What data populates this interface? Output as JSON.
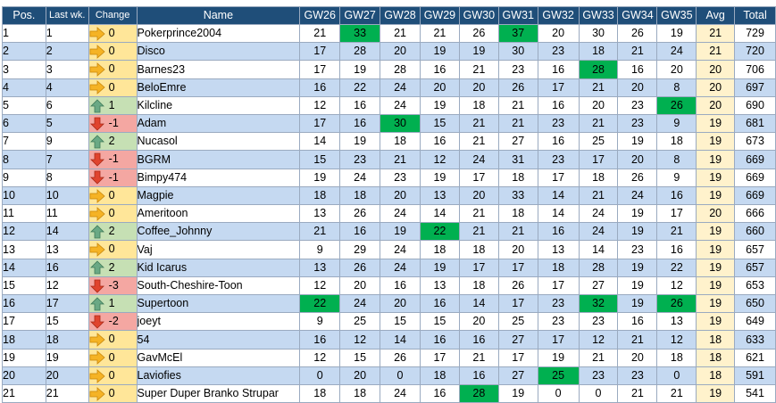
{
  "columns": [
    "Pos.",
    "Last wk.",
    "Change",
    "Name",
    "GW26",
    "GW27",
    "GW28",
    "GW29",
    "GW30",
    "GW31",
    "GW32",
    "GW33",
    "GW34",
    "GW35",
    "Avg",
    "Total"
  ],
  "colors": {
    "header": "#1f4e79",
    "row_alt": "#c5d9f1",
    "highlight": "#00b050",
    "avg": "#fff2cc",
    "same": "#ffe699",
    "up": "#c6e0b4",
    "down": "#f4a7a2"
  },
  "rows": [
    {
      "pos": "1",
      "last": "1",
      "dir": "same",
      "change": "0",
      "name": "Pokerprince2004",
      "gw": [
        "21",
        "33",
        "21",
        "21",
        "26",
        "37",
        "20",
        "30",
        "26",
        "19"
      ],
      "hl": [
        1,
        5
      ],
      "avg": "21",
      "total": "729"
    },
    {
      "pos": "2",
      "last": "2",
      "dir": "same",
      "change": "0",
      "name": "Disco",
      "gw": [
        "17",
        "28",
        "20",
        "19",
        "19",
        "30",
        "23",
        "18",
        "21",
        "24"
      ],
      "hl": [],
      "avg": "21",
      "total": "720"
    },
    {
      "pos": "3",
      "last": "3",
      "dir": "same",
      "change": "0",
      "name": "Barnes23",
      "gw": [
        "17",
        "19",
        "28",
        "16",
        "21",
        "23",
        "16",
        "28",
        "16",
        "20"
      ],
      "hl": [
        7
      ],
      "avg": "20",
      "total": "706"
    },
    {
      "pos": "4",
      "last": "4",
      "dir": "same",
      "change": "0",
      "name": "BeloEmre",
      "gw": [
        "16",
        "22",
        "24",
        "20",
        "20",
        "26",
        "17",
        "21",
        "20",
        "8"
      ],
      "hl": [],
      "avg": "20",
      "total": "697"
    },
    {
      "pos": "5",
      "last": "6",
      "dir": "up",
      "change": "1",
      "name": "Kilcline",
      "gw": [
        "12",
        "16",
        "24",
        "19",
        "18",
        "21",
        "16",
        "20",
        "23",
        "26"
      ],
      "hl": [
        9
      ],
      "avg": "20",
      "total": "690"
    },
    {
      "pos": "6",
      "last": "5",
      "dir": "down",
      "change": "-1",
      "name": "Adam",
      "gw": [
        "17",
        "16",
        "30",
        "15",
        "21",
        "21",
        "23",
        "21",
        "23",
        "9"
      ],
      "hl": [
        2
      ],
      "avg": "19",
      "total": "681"
    },
    {
      "pos": "7",
      "last": "9",
      "dir": "up",
      "change": "2",
      "name": "Nucasol",
      "gw": [
        "14",
        "19",
        "18",
        "16",
        "21",
        "27",
        "16",
        "25",
        "19",
        "18"
      ],
      "hl": [],
      "avg": "19",
      "total": "673"
    },
    {
      "pos": "8",
      "last": "7",
      "dir": "down",
      "change": "-1",
      "name": "BGRM",
      "gw": [
        "15",
        "23",
        "21",
        "12",
        "24",
        "31",
        "23",
        "17",
        "20",
        "8"
      ],
      "hl": [],
      "avg": "19",
      "total": "669"
    },
    {
      "pos": "9",
      "last": "8",
      "dir": "down",
      "change": "-1",
      "name": "Bimpy474",
      "gw": [
        "19",
        "24",
        "23",
        "19",
        "17",
        "18",
        "17",
        "18",
        "26",
        "9"
      ],
      "hl": [],
      "avg": "19",
      "total": "669"
    },
    {
      "pos": "10",
      "last": "10",
      "dir": "same",
      "change": "0",
      "name": "Magpie",
      "gw": [
        "18",
        "18",
        "20",
        "13",
        "20",
        "33",
        "14",
        "21",
        "24",
        "16"
      ],
      "hl": [],
      "avg": "19",
      "total": "669"
    },
    {
      "pos": "11",
      "last": "11",
      "dir": "same",
      "change": "0",
      "name": "Ameritoon",
      "gw": [
        "13",
        "26",
        "24",
        "14",
        "21",
        "18",
        "14",
        "24",
        "19",
        "17"
      ],
      "hl": [],
      "avg": "20",
      "total": "666"
    },
    {
      "pos": "12",
      "last": "14",
      "dir": "up",
      "change": "2",
      "name": "Coffee_Johnny",
      "gw": [
        "21",
        "16",
        "19",
        "22",
        "21",
        "21",
        "16",
        "24",
        "19",
        "21"
      ],
      "hl": [
        3
      ],
      "avg": "19",
      "total": "660"
    },
    {
      "pos": "13",
      "last": "13",
      "dir": "same",
      "change": "0",
      "name": "Vaj",
      "gw": [
        "9",
        "29",
        "24",
        "18",
        "18",
        "20",
        "13",
        "14",
        "23",
        "16"
      ],
      "hl": [],
      "avg": "19",
      "total": "657"
    },
    {
      "pos": "14",
      "last": "16",
      "dir": "up",
      "change": "2",
      "name": "Kid Icarus",
      "gw": [
        "13",
        "26",
        "24",
        "19",
        "17",
        "17",
        "18",
        "28",
        "19",
        "22"
      ],
      "hl": [],
      "avg": "19",
      "total": "657"
    },
    {
      "pos": "15",
      "last": "12",
      "dir": "down",
      "change": "-3",
      "name": "South-Cheshire-Toon",
      "gw": [
        "12",
        "20",
        "16",
        "13",
        "18",
        "26",
        "17",
        "27",
        "19",
        "12"
      ],
      "hl": [],
      "avg": "19",
      "total": "653"
    },
    {
      "pos": "16",
      "last": "17",
      "dir": "up",
      "change": "1",
      "name": "Supertoon",
      "gw": [
        "22",
        "24",
        "20",
        "16",
        "14",
        "17",
        "23",
        "32",
        "19",
        "26"
      ],
      "hl": [
        0,
        7,
        9
      ],
      "avg": "19",
      "total": "650"
    },
    {
      "pos": "17",
      "last": "15",
      "dir": "down",
      "change": "-2",
      "name": "joeyt",
      "gw": [
        "9",
        "25",
        "15",
        "15",
        "20",
        "25",
        "23",
        "23",
        "16",
        "13"
      ],
      "hl": [],
      "avg": "19",
      "total": "649"
    },
    {
      "pos": "18",
      "last": "18",
      "dir": "same",
      "change": "0",
      "name": "54",
      "gw": [
        "16",
        "12",
        "14",
        "16",
        "16",
        "27",
        "17",
        "12",
        "21",
        "12"
      ],
      "hl": [],
      "avg": "18",
      "total": "633"
    },
    {
      "pos": "19",
      "last": "19",
      "dir": "same",
      "change": "0",
      "name": "GavMcEl",
      "gw": [
        "12",
        "15",
        "26",
        "17",
        "21",
        "17",
        "19",
        "21",
        "20",
        "18"
      ],
      "hl": [],
      "avg": "18",
      "total": "621"
    },
    {
      "pos": "20",
      "last": "20",
      "dir": "same",
      "change": "0",
      "name": "Laviofies",
      "gw": [
        "0",
        "20",
        "0",
        "18",
        "16",
        "27",
        "25",
        "23",
        "23",
        "0"
      ],
      "hl": [
        6
      ],
      "avg": "18",
      "total": "591"
    },
    {
      "pos": "21",
      "last": "21",
      "dir": "same",
      "change": "0",
      "name": "Super Duper Branko Strupar",
      "gw": [
        "18",
        "18",
        "24",
        "16",
        "28",
        "19",
        "0",
        "0",
        "21",
        "21"
      ],
      "hl": [
        4
      ],
      "avg": "19",
      "total": "541"
    }
  ]
}
